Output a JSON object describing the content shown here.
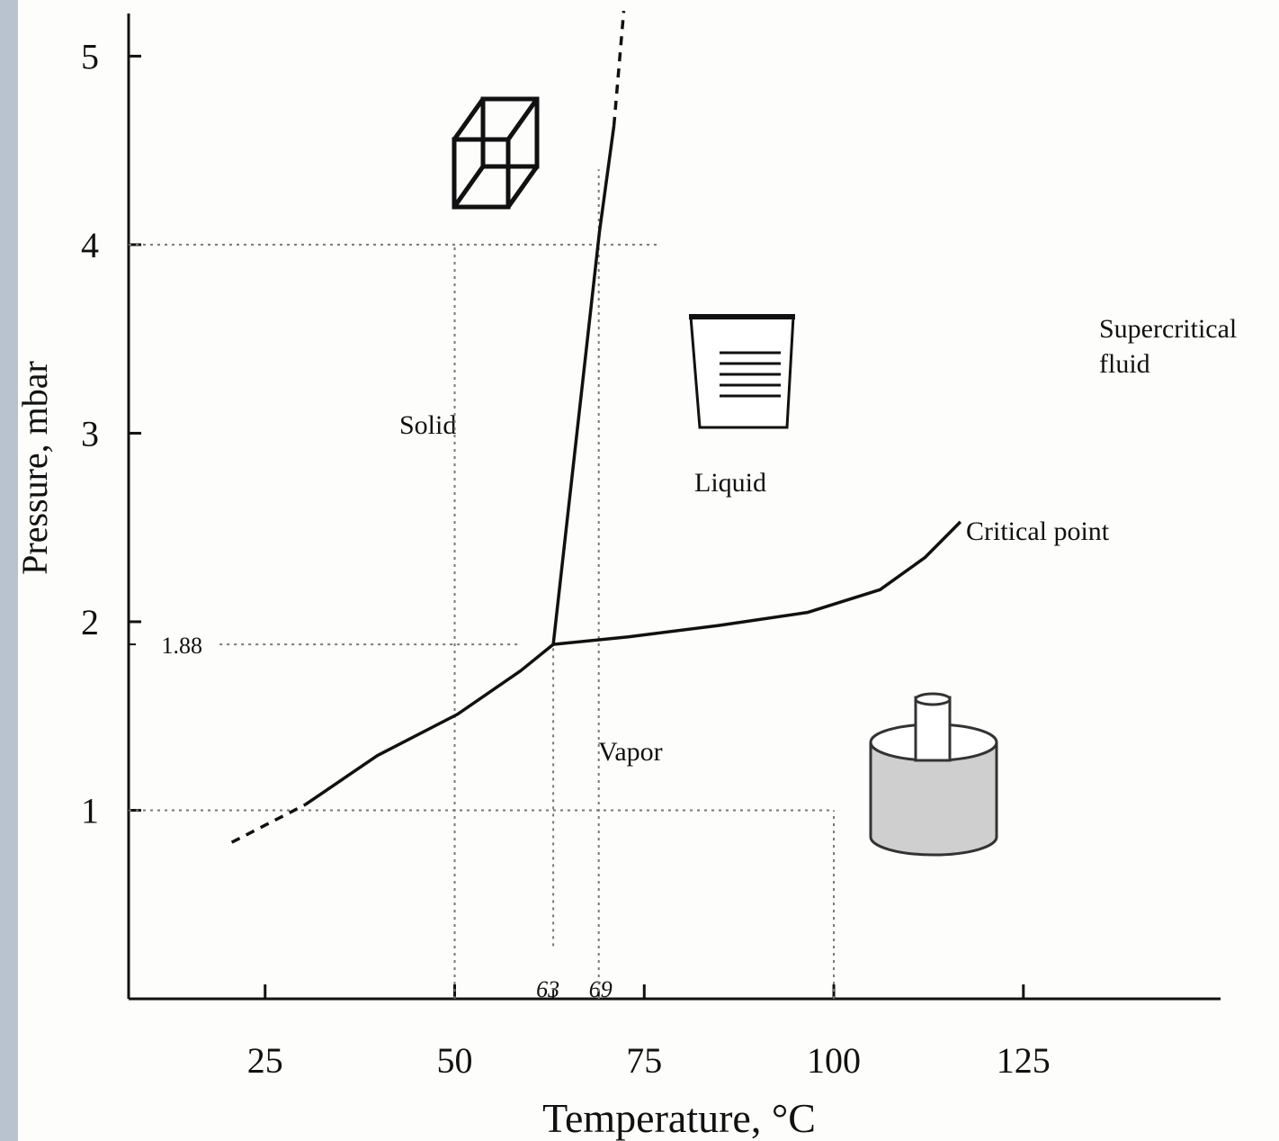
{
  "chart_data": {
    "type": "line",
    "xlabel": "Temperature, °C",
    "ylabel": "Pressure, mbar",
    "xlim": [
      7,
      151
    ],
    "ylim": [
      0,
      5.25
    ],
    "xticks": [
      25,
      50,
      75,
      100,
      125
    ],
    "yticks": [
      1,
      2,
      3,
      4,
      5
    ],
    "guide_xticks": [
      63,
      69
    ],
    "guide_yticks": [
      1.88
    ],
    "color": "#111111",
    "series": [
      {
        "style": "dashed",
        "x": [
          20.6,
          30.3
        ],
        "values": [
          0.83,
          1.03
        ]
      },
      {
        "style": "solid",
        "x": [
          30.3,
          39.8,
          50.4,
          58.7,
          63
        ],
        "values": [
          1.03,
          1.29,
          1.51,
          1.74,
          1.88
        ]
      },
      {
        "style": "solid",
        "x": [
          63,
          69.1,
          71.0
        ],
        "values": [
          1.88,
          4.07,
          4.63
        ]
      },
      {
        "style": "dashed",
        "x": [
          71.0,
          72.3
        ],
        "values": [
          4.63,
          5.24
        ]
      },
      {
        "style": "solid",
        "x": [
          63,
          72.9,
          84.8,
          96.6,
          106.1,
          112,
          116.7
        ],
        "values": [
          1.88,
          1.92,
          1.98,
          2.05,
          2.17,
          2.34,
          2.53
        ]
      }
    ],
    "guides": [
      {
        "x": [
          7,
          77
        ],
        "values": [
          4,
          4
        ]
      },
      {
        "x": [
          50,
          50
        ],
        "values": [
          0,
          4
        ]
      },
      {
        "x": [
          19,
          58.7
        ],
        "values": [
          1.88,
          1.88
        ]
      },
      {
        "x": [
          63,
          63
        ],
        "values": [
          0.28,
          1.88
        ]
      },
      {
        "x": [
          69,
          69
        ],
        "values": [
          0,
          4.4
        ]
      },
      {
        "x": [
          7,
          100
        ],
        "values": [
          1,
          1
        ]
      },
      {
        "x": [
          100,
          100
        ],
        "values": [
          0,
          1
        ]
      }
    ],
    "annotations": [
      "Solid",
      "Liquid",
      "Vapor",
      "Supercritical",
      "fluid",
      "Critical point"
    ]
  }
}
